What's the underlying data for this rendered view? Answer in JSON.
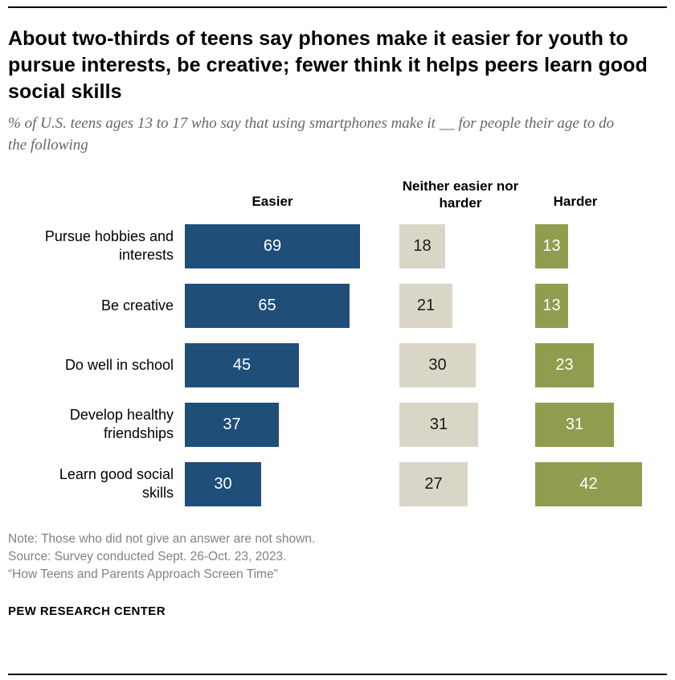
{
  "header": {
    "title": "About two-thirds of teens say phones make it easier for youth to pursue interests, be creative; fewer think it helps peers learn good social skills",
    "subtitle": "% of U.S. teens ages 13 to 17 who say that using smartphones make it __ for people their age to do the following"
  },
  "chart_data": {
    "type": "bar",
    "orientation": "horizontal",
    "unit": "percent",
    "xlim": [
      0,
      100
    ],
    "grid": false,
    "legend_position": "column-headers",
    "categories": [
      "Pursue hobbies and interests",
      "Be creative",
      "Do well in school",
      "Develop healthy friendships",
      "Learn good social skills"
    ],
    "series": [
      {
        "name": "Easier",
        "color": "#1f4e79",
        "label_color": "#ffffff",
        "values": [
          69,
          65,
          45,
          37,
          30
        ]
      },
      {
        "name": "Neither easier nor harder",
        "color": "#d9d6c8",
        "label_color": "#1a1a1a",
        "values": [
          18,
          21,
          30,
          31,
          27
        ]
      },
      {
        "name": "Harder",
        "color": "#8f9d4e",
        "label_color": "#ffffff",
        "values": [
          13,
          13,
          23,
          31,
          42
        ]
      }
    ]
  },
  "footer": {
    "note": "Note: Those who did not give an answer are not shown.",
    "source": "Source: Survey conducted Sept. 26-Oct. 23, 2023.",
    "report": "“How Teens and Parents Approach Screen Time”",
    "brand": "PEW RESEARCH CENTER"
  }
}
